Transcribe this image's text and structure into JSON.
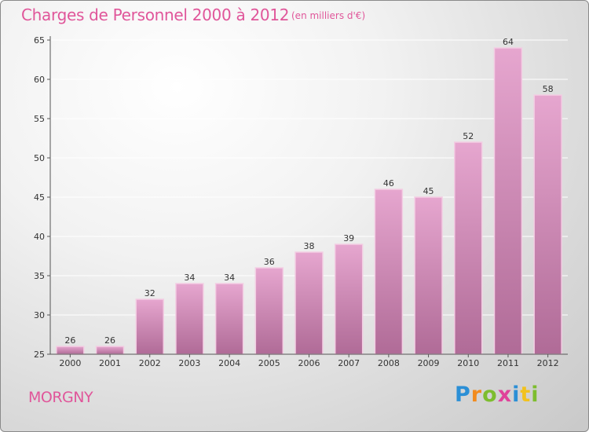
{
  "header": {
    "title": "Charges de Personnel 2000 à 2012",
    "subtitle": "(en milliers d'€)"
  },
  "footer": {
    "commune": "MORGNY",
    "logo_letters": [
      "P",
      "r",
      "o",
      "x",
      "i",
      "t",
      "i"
    ]
  },
  "colors": {
    "title": "#e0569a",
    "bar_top": "#e6a6cf",
    "bar_bottom": "#b06b97",
    "gridline": "#ffffff"
  },
  "chart_data": {
    "type": "bar",
    "title": "Charges de Personnel 2000 à 2012",
    "subtitle": "(en milliers d'€)",
    "xlabel": "",
    "ylabel": "",
    "categories": [
      "2000",
      "2001",
      "2002",
      "2003",
      "2004",
      "2005",
      "2006",
      "2007",
      "2008",
      "2009",
      "2010",
      "2011",
      "2012"
    ],
    "values": [
      26,
      26,
      32,
      34,
      34,
      36,
      38,
      39,
      46,
      45,
      52,
      64,
      58
    ],
    "ylim": [
      25,
      65
    ],
    "yticks": [
      25,
      30,
      35,
      40,
      45,
      50,
      55,
      60,
      65
    ],
    "grid": true,
    "legend": "none"
  }
}
